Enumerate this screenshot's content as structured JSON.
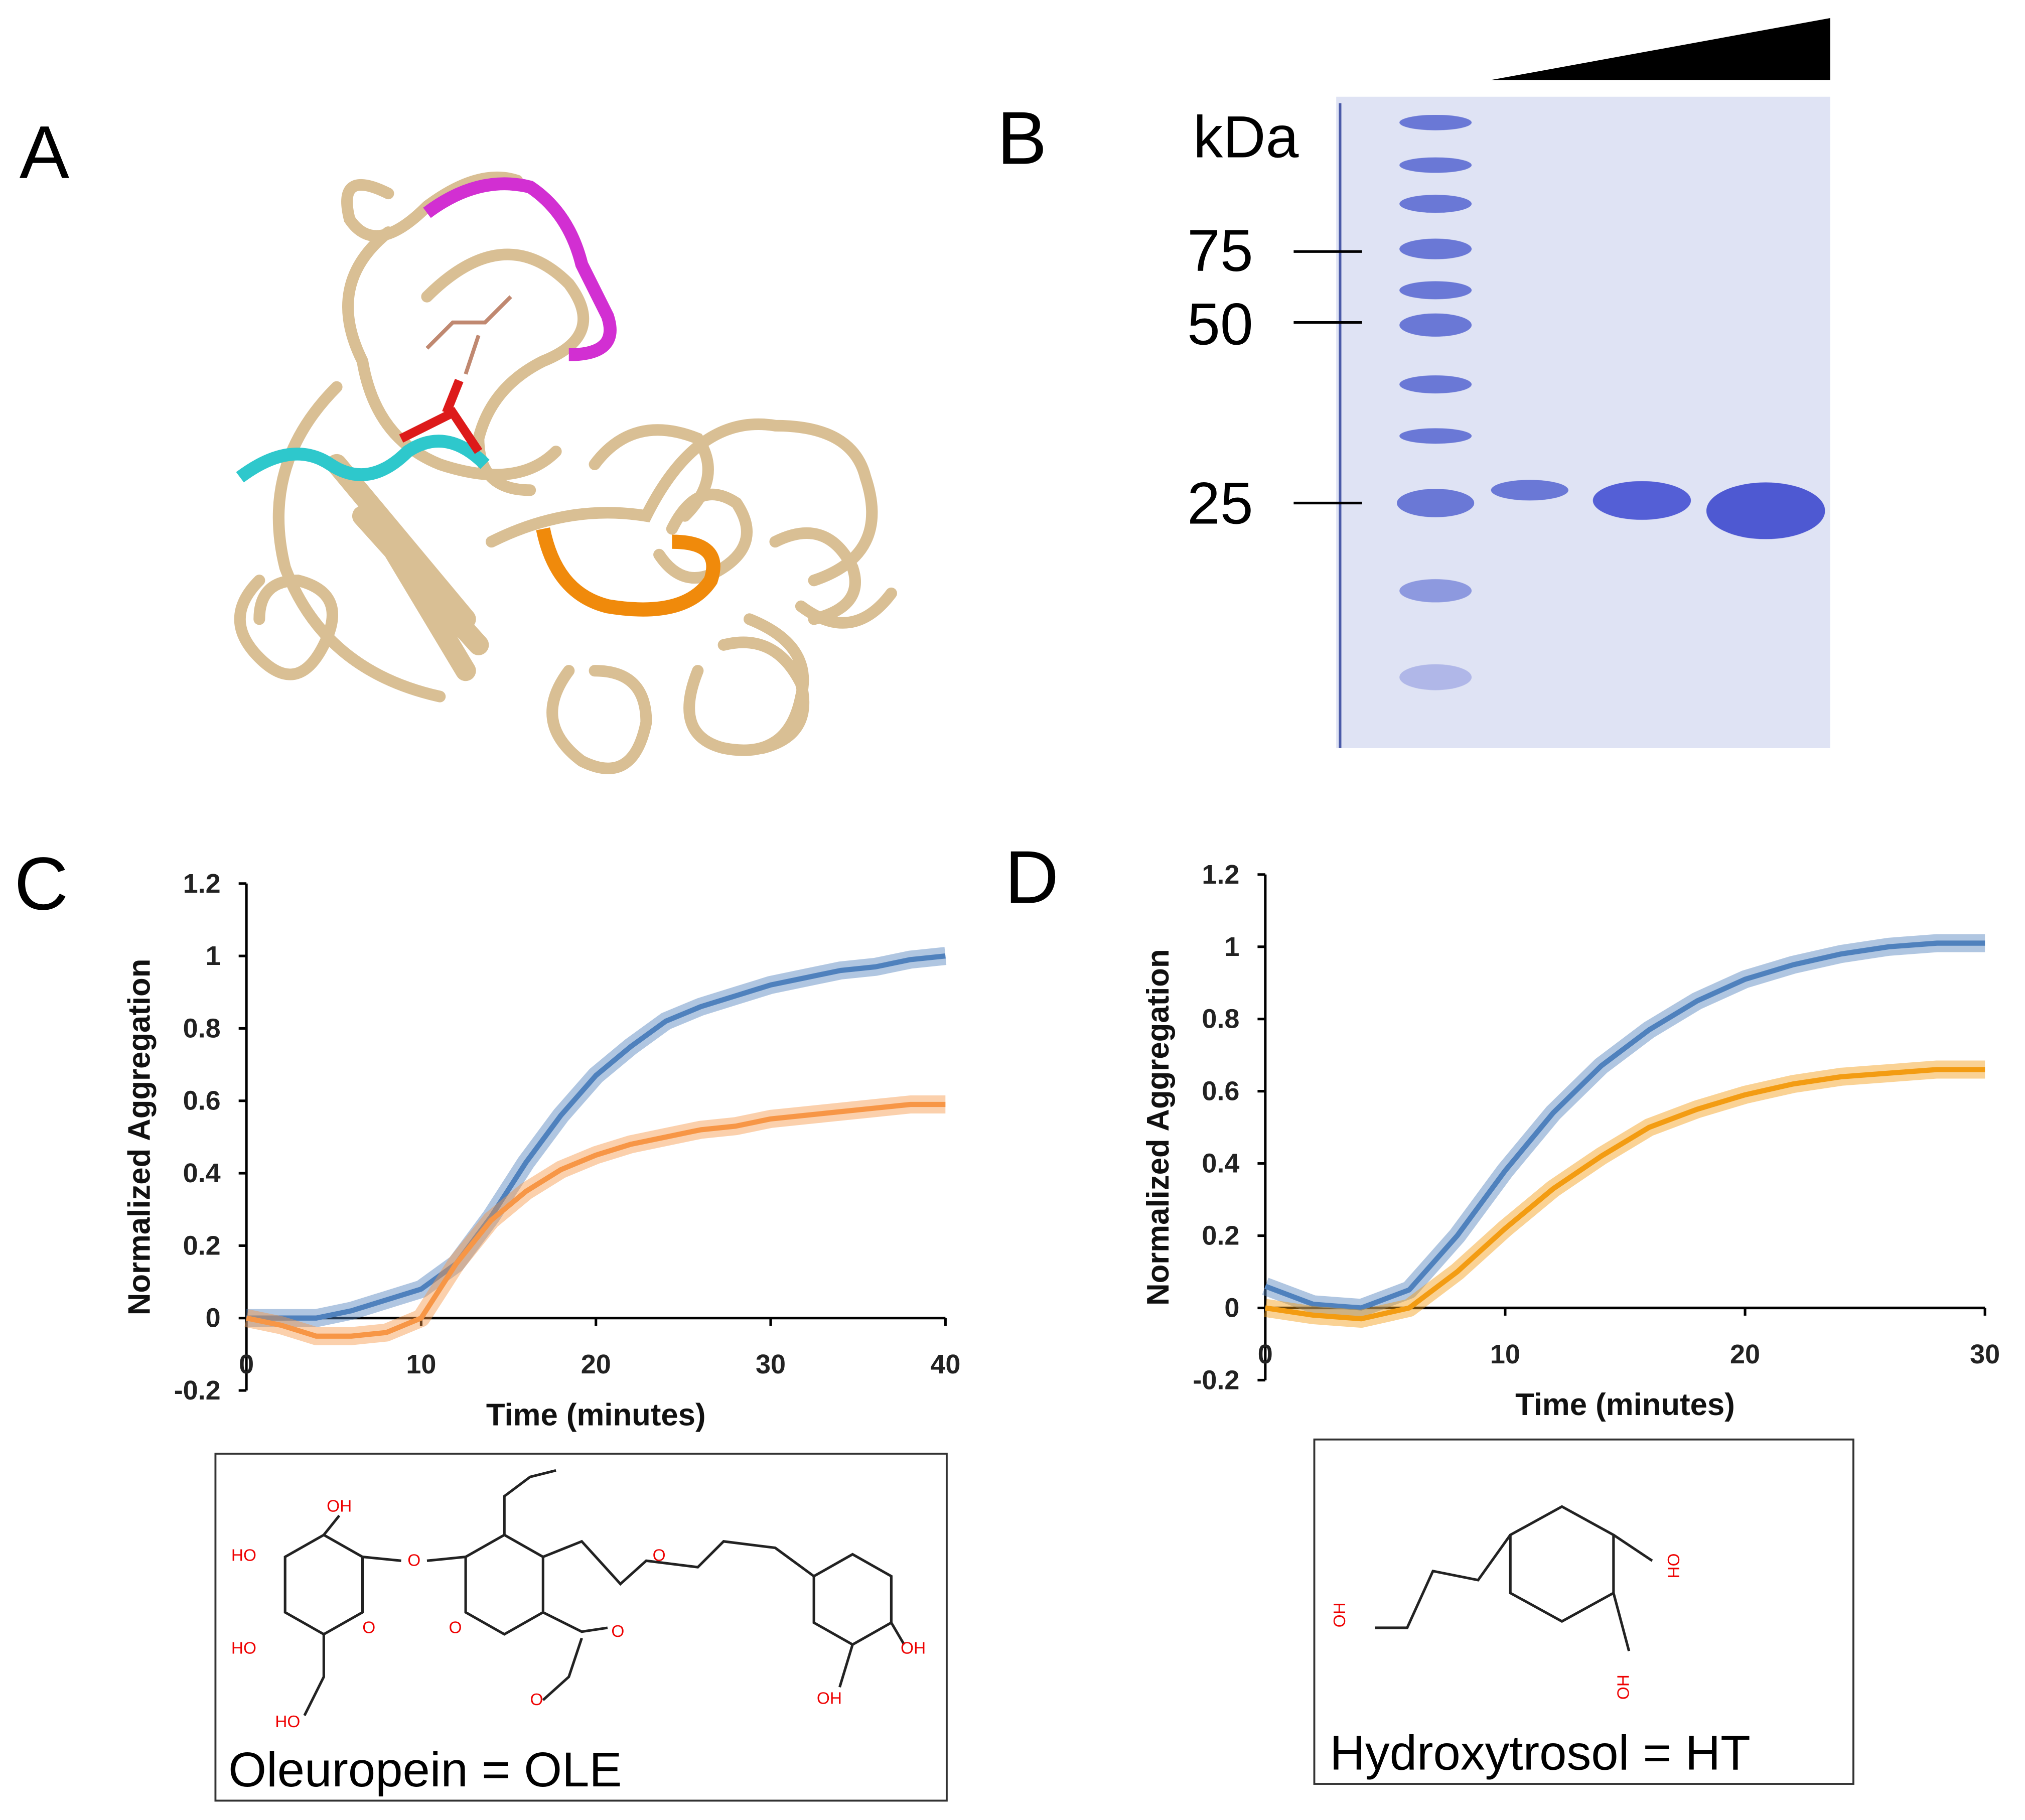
{
  "panel_labels": [
    "A",
    "B",
    "C",
    "D"
  ],
  "gel": {
    "unit": "kDa",
    "markers": [
      75,
      50,
      25
    ]
  },
  "structures": [
    {
      "caption": "Oleuropein = OLE",
      "atoms": [
        "OH",
        "HO",
        "O",
        "HO",
        "O",
        "HO",
        "O",
        "O",
        "O",
        "O",
        "OH",
        "OH"
      ]
    },
    {
      "caption": "Hydroxytrosol = HT",
      "atoms": [
        "OH",
        "OH",
        "OH"
      ]
    }
  ],
  "chart_data": [
    {
      "type": "line",
      "x_label": "Time (minutes)",
      "y_label": "Normalized Aggregation",
      "x": [
        0,
        2,
        4,
        6,
        8,
        10,
        12,
        14,
        16,
        18,
        20,
        22,
        24,
        26,
        28,
        30,
        32,
        34,
        36,
        38,
        40
      ],
      "series": [
        {
          "color": "#4f81bd",
          "values": [
            0,
            0,
            0,
            0.02,
            0.05,
            0.08,
            0.15,
            0.28,
            0.43,
            0.56,
            0.67,
            0.75,
            0.82,
            0.86,
            0.89,
            0.92,
            0.94,
            0.96,
            0.97,
            0.99,
            1.0
          ]
        },
        {
          "color": "#f79646",
          "values": [
            0,
            -0.02,
            -0.05,
            -0.05,
            -0.04,
            0,
            0.15,
            0.27,
            0.35,
            0.41,
            0.45,
            0.48,
            0.5,
            0.52,
            0.53,
            0.55,
            0.56,
            0.57,
            0.58,
            0.59,
            0.59
          ]
        }
      ],
      "xlim": [
        0,
        40
      ],
      "xticks": [
        0,
        10,
        20,
        30,
        40
      ],
      "ylim": [
        -0.2,
        1.2
      ],
      "yticks": [
        -0.2,
        0,
        0.2,
        0.4,
        0.6,
        0.8,
        1,
        1.2
      ]
    },
    {
      "type": "line",
      "x_label": "Time (minutes)",
      "y_label": "Normalized Aggregation",
      "x": [
        0,
        2,
        4,
        6,
        8,
        10,
        12,
        14,
        16,
        18,
        20,
        22,
        24,
        26,
        28,
        30
      ],
      "series": [
        {
          "color": "#4f81bd",
          "values": [
            0.06,
            0.01,
            0,
            0.05,
            0.2,
            0.38,
            0.54,
            0.67,
            0.77,
            0.85,
            0.91,
            0.95,
            0.98,
            1.0,
            1.01,
            1.01
          ]
        },
        {
          "color": "#f39c12",
          "values": [
            0,
            -0.02,
            -0.03,
            0,
            0.1,
            0.22,
            0.33,
            0.42,
            0.5,
            0.55,
            0.59,
            0.62,
            0.64,
            0.65,
            0.66,
            0.66
          ]
        }
      ],
      "xlim": [
        0,
        30
      ],
      "xticks": [
        0,
        10,
        20,
        30
      ],
      "ylim": [
        -0.2,
        1.2
      ],
      "yticks": [
        -0.2,
        0,
        0.2,
        0.4,
        0.6,
        0.8,
        1,
        1.2
      ]
    }
  ]
}
